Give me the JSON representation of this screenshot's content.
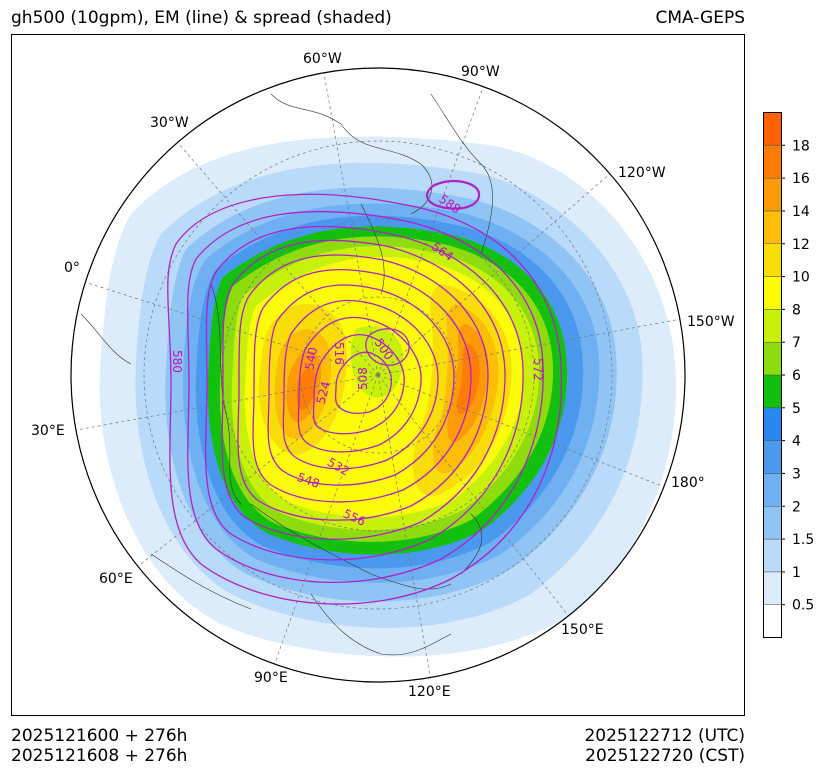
{
  "header": {
    "title_left": "gh500 (10gpm), EM (line) & spread (shaded)",
    "title_right": "CMA-GEPS"
  },
  "footer": {
    "init_utc": "2025121600 + 276h",
    "init_cst": "2025121608 + 276h",
    "valid_utc": "2025122712 (UTC)",
    "valid_cst": "2025122720 (CST)"
  },
  "map": {
    "projection": "north-polar-stereographic",
    "longitude_labels": [
      "60°W",
      "90°W",
      "30°W",
      "120°W",
      "0°",
      "150°W",
      "30°E",
      "180°",
      "60°E",
      "150°E",
      "90°E",
      "120°E"
    ],
    "contour_labels": [
      "588",
      "564",
      "580",
      "540",
      "516",
      "500",
      "508",
      "524",
      "572",
      "532",
      "548",
      "556"
    ]
  },
  "colorbar": {
    "levels": [
      "0.5",
      "1",
      "1.5",
      "2",
      "3",
      "4",
      "5",
      "6",
      "7",
      "8",
      "10",
      "12",
      "14",
      "16",
      "18"
    ],
    "colors": [
      "#ffffff",
      "#dcecfb",
      "#b9daf9",
      "#90c4f5",
      "#6eb0f2",
      "#4b99ef",
      "#2b87f0",
      "#14c00e",
      "#8fdc0e",
      "#c8f10a",
      "#fcfc08",
      "#f9dd06",
      "#fbbd06",
      "#fb9a06",
      "#fd7c06",
      "#ff6106"
    ]
  },
  "colors": {
    "contour": "#b021c8",
    "contour_label": "#c010c0"
  }
}
